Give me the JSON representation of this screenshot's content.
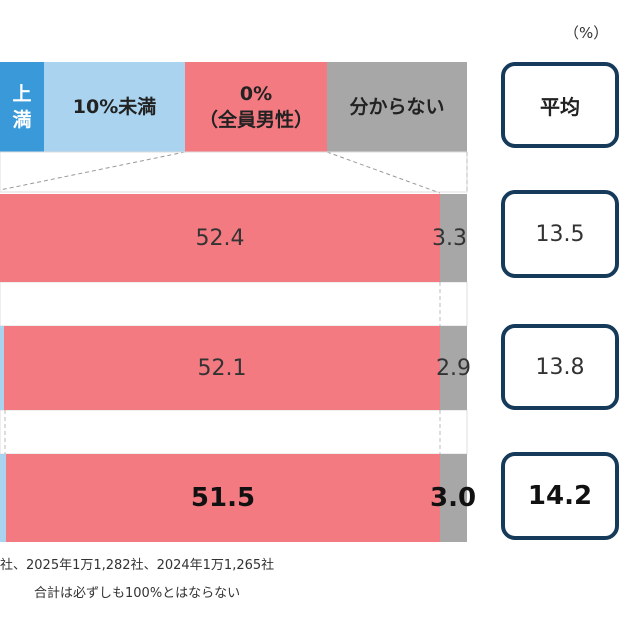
{
  "unit_label": "（%）",
  "legend": {
    "seg_over_top": "上",
    "seg_over_bottom": "満",
    "under10": "10%未満",
    "zero_top": "0%",
    "zero_bottom": "（全員男性）",
    "unknown": "分からない",
    "average": "平均"
  },
  "colors": {
    "blue": "#3a9ad9",
    "light_blue": "#a9d3ee",
    "pink": "#f47a82",
    "gray": "#a7a7a7",
    "navy": "#163a5a"
  },
  "chart_data": {
    "type": "bar",
    "orientation": "horizontal-stacked",
    "series": [
      {
        "name": "0%（全員男性）",
        "values": [
          52.4,
          52.1,
          51.5
        ]
      },
      {
        "name": "分からない",
        "values": [
          3.3,
          2.9,
          3.0
        ]
      }
    ],
    "rows": [
      {
        "zero": "52.4",
        "unknown": "3.3",
        "avg": "13.5"
      },
      {
        "zero": "52.1",
        "unknown": "2.9",
        "avg": "13.8"
      },
      {
        "zero": "51.5",
        "unknown": "3.0",
        "avg": "14.2"
      }
    ],
    "averages": [
      13.5,
      13.8,
      14.2
    ]
  },
  "notes": {
    "line1": "社、2025年1万1,282社、2024年1万1,265社",
    "line2": "合計は必ずしも100%とはならない"
  }
}
